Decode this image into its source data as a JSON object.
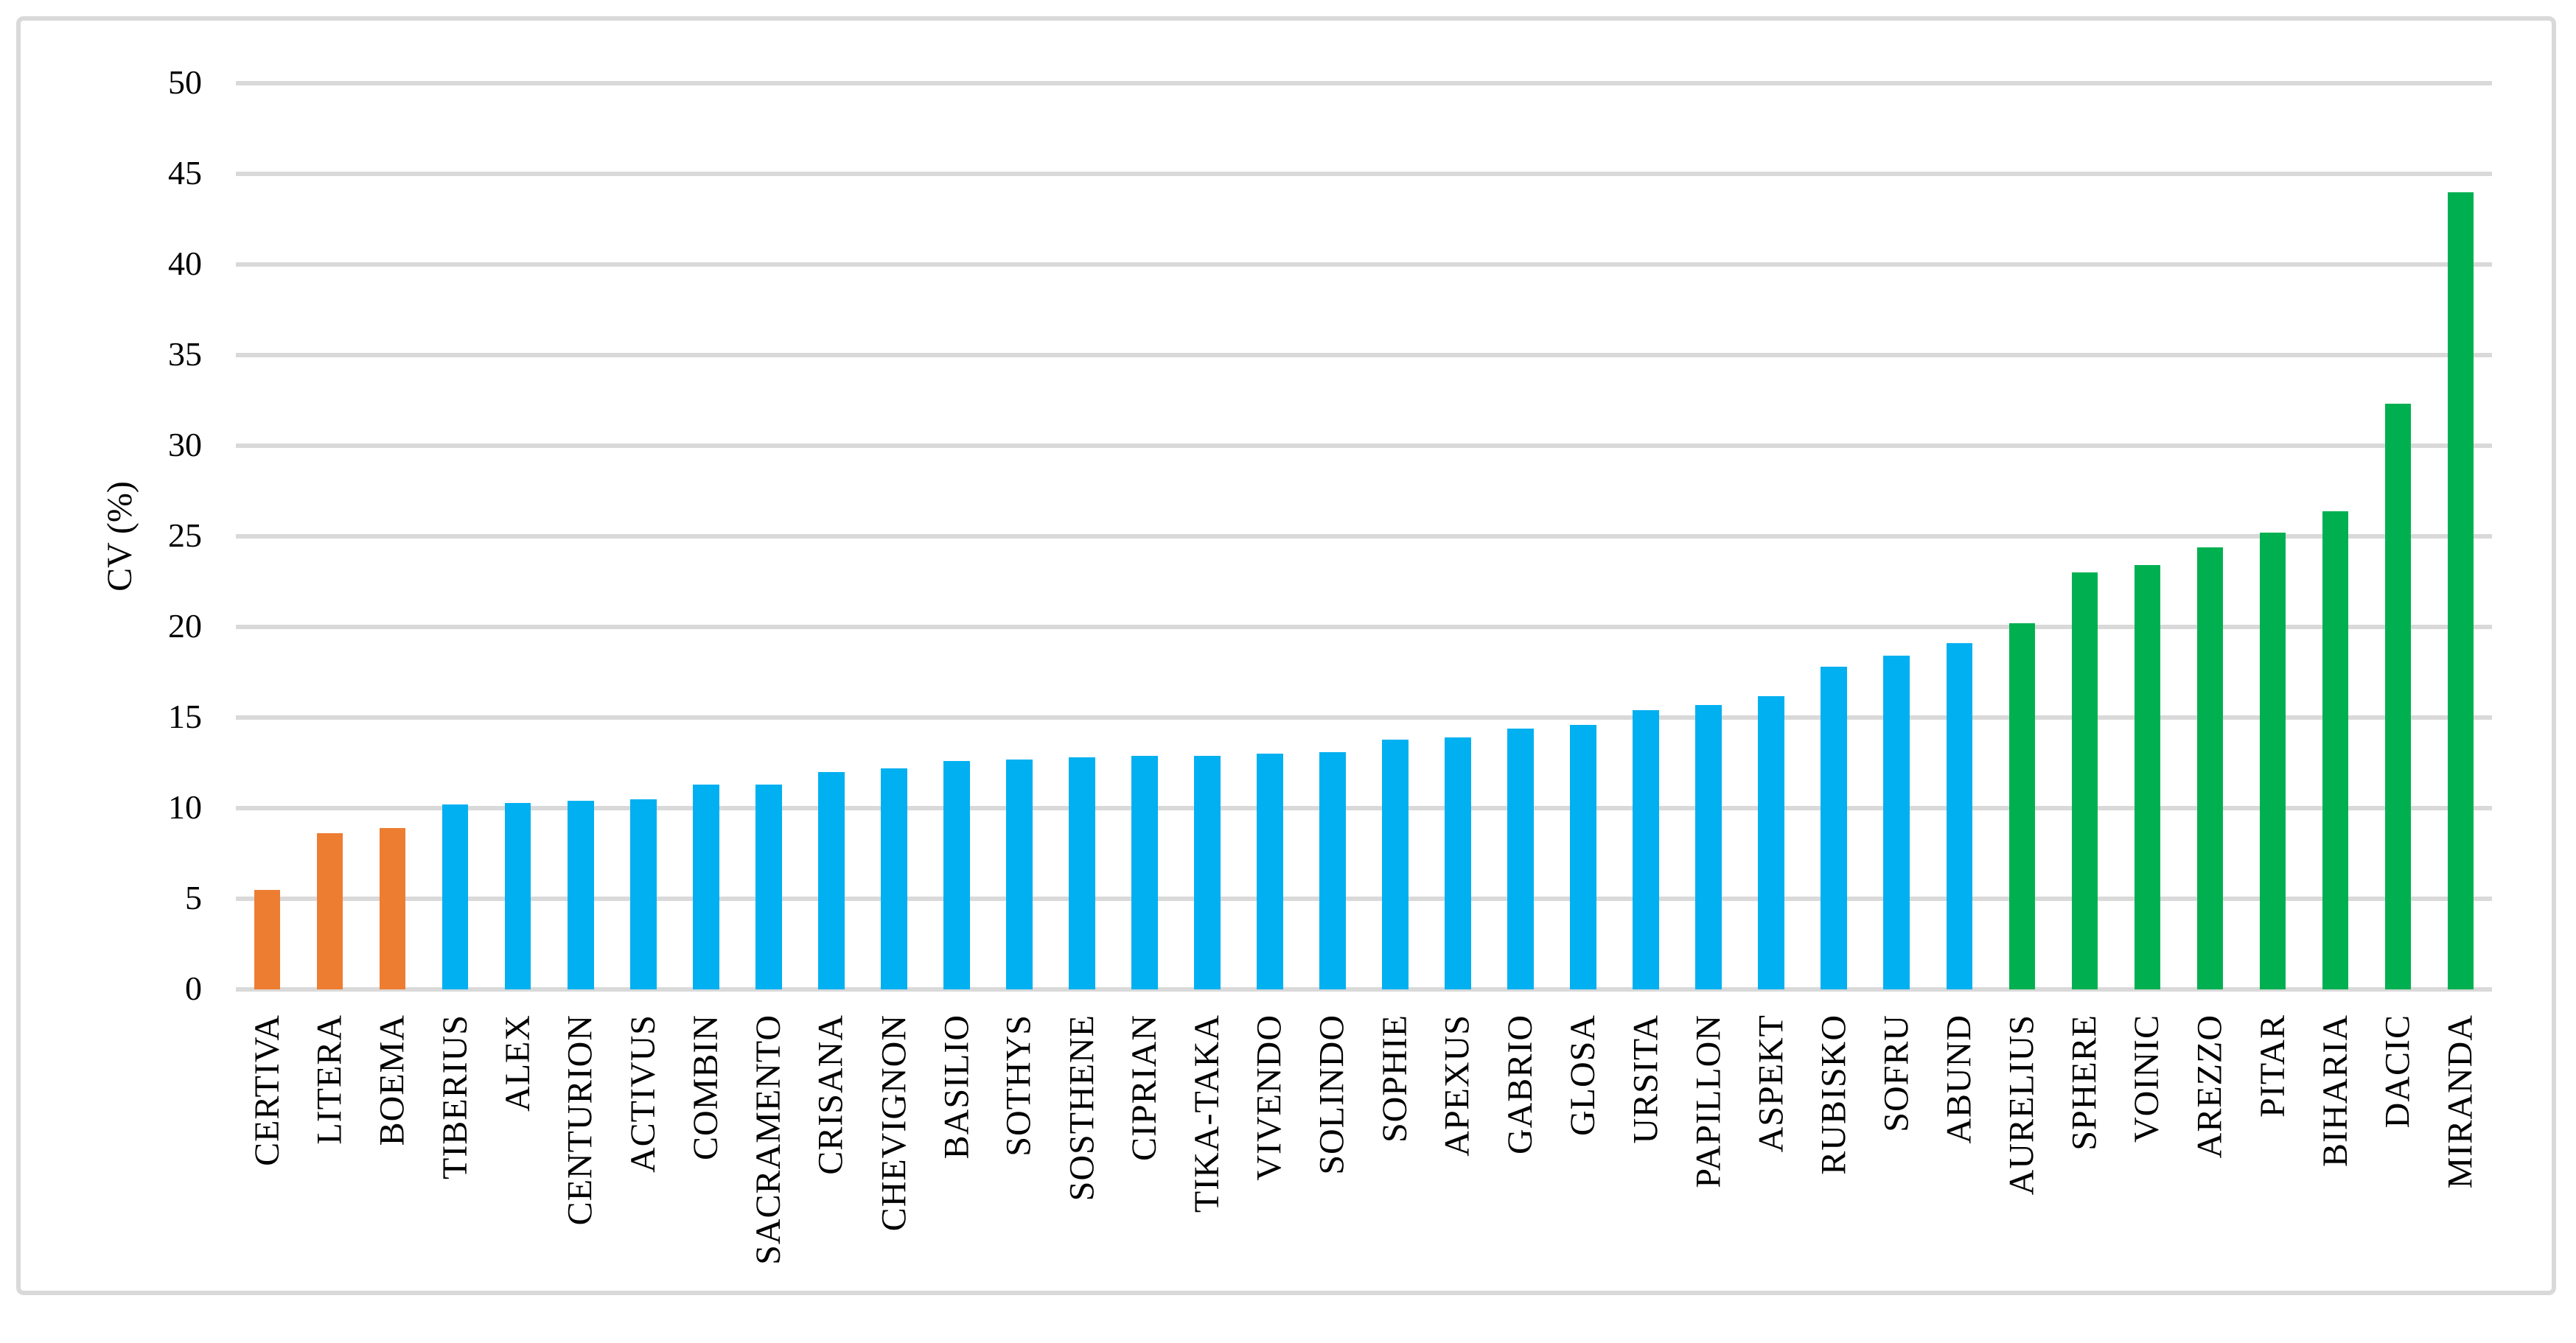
{
  "figure": {
    "background_color": "#FFFFFF",
    "border_color": "#D9D9D9"
  },
  "chart_data": {
    "type": "bar",
    "title": "",
    "xlabel": "",
    "ylabel": "CV (%)",
    "ylim": [
      0,
      50
    ],
    "yticks": [
      0,
      5,
      10,
      15,
      20,
      25,
      30,
      35,
      40,
      45,
      50
    ],
    "grid": "horizontal-only",
    "gridline_color": "#D9D9D9",
    "legend": "none",
    "bar_color_groups": {
      "orange": "#ED7D31",
      "blue": "#00B0F0",
      "green": "#00B050"
    },
    "categories": [
      "CERTIVA",
      "LITERA",
      "BOEMA",
      "TIBERIUS",
      "ALEX",
      "CENTURION",
      "ACTIVUS",
      "COMBIN",
      "SACRAMENTO",
      "CRISANA",
      "CHEVIGNON",
      "BASILIO",
      "SOTHYS",
      "SOSTHENE",
      "CIPRIAN",
      "TIKA-TAKA",
      "VIVENDO",
      "SOLINDO",
      "SOPHIE",
      "APEXUS",
      "GABRIO",
      "GLOSA",
      "URSITA",
      "PAPILLON",
      "ASPEKT",
      "RUBISKO",
      "SOFRU",
      "ABUND",
      "AURELIUS",
      "SPHERE",
      "VOINIC",
      "AREZZO",
      "PITAR",
      "BIHARIA",
      "DACIC",
      "MIRANDA"
    ],
    "values": [
      5.5,
      8.6,
      8.9,
      10.2,
      10.3,
      10.4,
      10.5,
      11.3,
      11.3,
      12.0,
      12.2,
      12.6,
      12.7,
      12.8,
      12.9,
      12.9,
      13.0,
      13.1,
      13.8,
      13.9,
      14.4,
      14.6,
      15.4,
      15.7,
      16.2,
      17.8,
      18.4,
      19.1,
      20.2,
      23.0,
      23.4,
      24.4,
      25.2,
      26.4,
      32.3,
      44.0
    ],
    "bar_groups": [
      "orange",
      "orange",
      "orange",
      "blue",
      "blue",
      "blue",
      "blue",
      "blue",
      "blue",
      "blue",
      "blue",
      "blue",
      "blue",
      "blue",
      "blue",
      "blue",
      "blue",
      "blue",
      "blue",
      "blue",
      "blue",
      "blue",
      "blue",
      "blue",
      "blue",
      "blue",
      "blue",
      "blue",
      "green",
      "green",
      "green",
      "green",
      "green",
      "green",
      "green",
      "green"
    ]
  }
}
